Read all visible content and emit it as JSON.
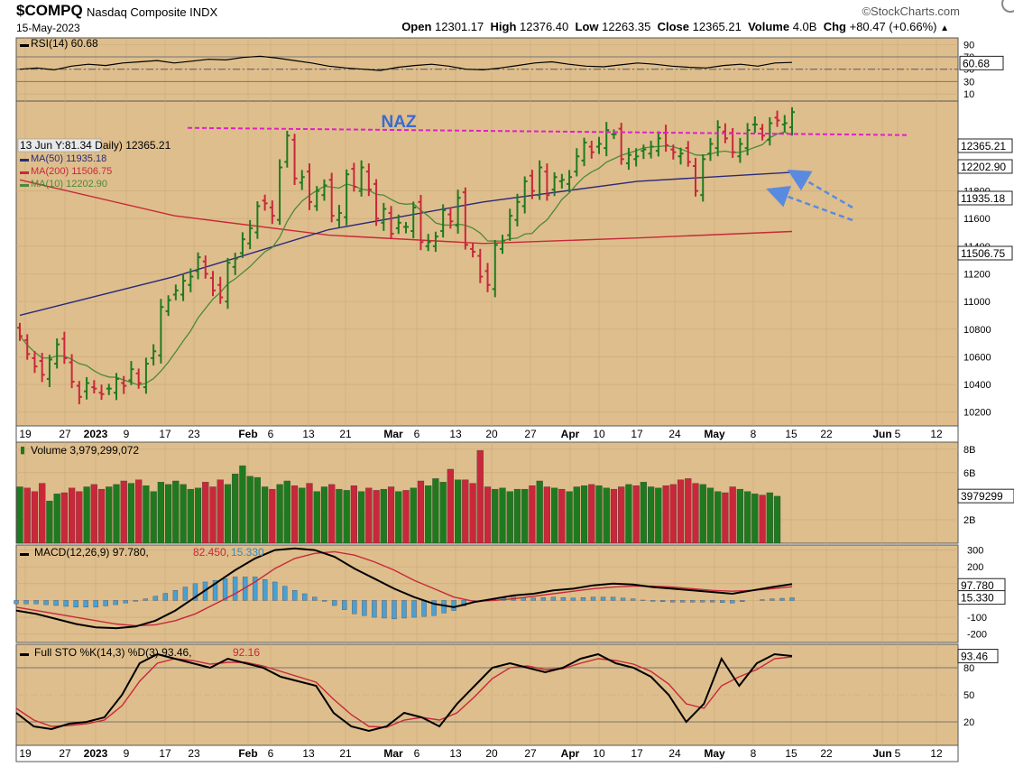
{
  "header": {
    "symbol": "$COMPQ",
    "name": "Nasdaq Composite INDX",
    "date": "15-May-2023",
    "open_label": "Open",
    "open": "12301.17",
    "high_label": "High",
    "high": "12376.40",
    "low_label": "Low",
    "low": "12263.35",
    "close_label": "Close",
    "close": "12365.21",
    "volume_label": "Volume",
    "volume": "4.0B",
    "chg_label": "Chg",
    "chg": "+80.47 (+0.66%)",
    "chg_arrow": "▲",
    "brand": "©StockCharts.com"
  },
  "colors": {
    "panel_bg": "#DEBE8C",
    "up": "#1F7A1F",
    "down": "#C8283A",
    "ma50": "#2A2A7A",
    "ma200": "#C8283A",
    "ma10": "#4A8A3A",
    "resistance": "#E020C8",
    "arrow": "#5A8AE0",
    "macd_hist": "#4AA0D0"
  },
  "rsi_panel": {
    "label": "RSI(14) 60.68",
    "value_tag": "60.68",
    "ticks": [
      "90",
      "70",
      "50",
      "30",
      "10"
    ]
  },
  "price_panel": {
    "annotation": "NAZ",
    "legend_main": "13 Jun Y:81.34 Daily) 12365.21",
    "legend_ma50": "MA(50) 11935.18",
    "legend_ma200": "MA(200) 11506.75",
    "legend_ma10": "MA(10) 12202.90",
    "tag_close": "12365.21",
    "tag_ma10": "12202.90",
    "tag_ma50": "11935.18",
    "tag_ma200": "11506.75",
    "ticks": [
      "11800",
      "11600",
      "11400",
      "11200",
      "11000",
      "10800",
      "10600",
      "10400",
      "10200"
    ]
  },
  "volume_panel": {
    "label": "Volume 3,979,299,072",
    "value_tag": "3979299",
    "ticks": [
      "8B",
      "6B",
      "2B"
    ]
  },
  "macd_panel": {
    "label_a": "MACD(12,26,9) 97.780,",
    "label_b": "82.450,",
    "label_c": "15.330",
    "tag_macd": "97.780",
    "tag_hist": "15.330",
    "ticks": [
      "300",
      "200",
      "100",
      "0",
      "-100",
      "-200"
    ]
  },
  "sto_panel": {
    "label_a": "Full STO %K(14,3) %D(3) 93.46,",
    "label_b": "92.16",
    "value_tag": "93.46",
    "ticks": [
      "80",
      "50",
      "20"
    ]
  },
  "x_axis": {
    "labels": [
      {
        "text": "19",
        "bold": false
      },
      {
        "text": "27",
        "bold": false
      },
      {
        "text": "2023",
        "bold": true
      },
      {
        "text": "9",
        "bold": false
      },
      {
        "text": "17",
        "bold": false
      },
      {
        "text": "23",
        "bold": false
      },
      {
        "text": "Feb",
        "bold": true
      },
      {
        "text": "6",
        "bold": false
      },
      {
        "text": "13",
        "bold": false
      },
      {
        "text": "21",
        "bold": false
      },
      {
        "text": "Mar",
        "bold": true
      },
      {
        "text": "6",
        "bold": false
      },
      {
        "text": "13",
        "bold": false
      },
      {
        "text": "20",
        "bold": false
      },
      {
        "text": "27",
        "bold": false
      },
      {
        "text": "Apr",
        "bold": true
      },
      {
        "text": "10",
        "bold": false
      },
      {
        "text": "17",
        "bold": false
      },
      {
        "text": "24",
        "bold": false
      },
      {
        "text": "May",
        "bold": true
      },
      {
        "text": "8",
        "bold": false
      },
      {
        "text": "15",
        "bold": false
      },
      {
        "text": "22",
        "bold": false
      },
      {
        "text": "Jun",
        "bold": true
      },
      {
        "text": "5",
        "bold": false
      },
      {
        "text": "12",
        "bold": false
      }
    ]
  },
  "chart_data": [
    {
      "type": "ohlc",
      "title": "$COMPQ Nasdaq Composite INDX",
      "ylim": [
        10100,
        12450
      ],
      "resistance_level": 12230,
      "annotations": [
        "NAZ"
      ],
      "close": [
        10750,
        10620,
        10530,
        10470,
        10580,
        10690,
        10590,
        10420,
        10310,
        10410,
        10370,
        10330,
        10370,
        10440,
        10390,
        10510,
        10410,
        10550,
        10640,
        10960,
        11010,
        11080,
        11150,
        11180,
        11320,
        11200,
        11080,
        11030,
        11280,
        11310,
        11450,
        11530,
        11690,
        11710,
        11620,
        11970,
        12200,
        11890,
        11900,
        11720,
        11800,
        11840,
        11620,
        11640,
        11920,
        11830,
        11970,
        11810,
        11600,
        11670,
        11490,
        11570,
        11540,
        11680,
        11430,
        11430,
        11470,
        11660,
        11580,
        11750,
        11410,
        11360,
        11180,
        11120,
        11410,
        11440,
        11620,
        11720,
        11870,
        11800,
        11970,
        11770,
        11900,
        11880,
        11900,
        12050,
        12150,
        12080,
        12140,
        12240,
        12210,
        12030,
        12060,
        12050,
        12100,
        12120,
        12180,
        12130,
        12080,
        12070,
        12010,
        11800,
        12030,
        12140,
        12260,
        12180,
        12080,
        12140,
        12240,
        12280,
        12200,
        12290,
        12310,
        12290,
        12370
      ],
      "series": [
        {
          "name": "MA(50)",
          "last": 11935.18,
          "values": [
            10900,
            11180,
            11520,
            11720,
            11870,
            11935
          ]
        },
        {
          "name": "MA(200)",
          "last": 11506.75,
          "values": [
            11880,
            11620,
            11480,
            11420,
            11460,
            11507
          ]
        },
        {
          "name": "MA(10)",
          "last": 12202.9,
          "values": [
            10850,
            10380,
            11000,
            11950,
            11700,
            11450,
            11900,
            12100,
            12050,
            12203
          ]
        }
      ]
    },
    {
      "type": "line",
      "name": "RSI(14)",
      "ylim": [
        0,
        100
      ],
      "last": 60.68,
      "values": [
        50,
        52,
        49,
        55,
        58,
        56,
        60,
        62,
        64,
        60,
        63,
        66,
        65,
        69,
        71,
        68,
        64,
        60,
        55,
        52,
        50,
        48,
        53,
        56,
        58,
        55,
        50,
        49,
        52,
        56,
        60,
        62,
        58,
        55,
        54,
        57,
        60,
        58,
        55,
        53,
        52,
        56,
        58,
        55,
        60,
        61
      ]
    },
    {
      "type": "bar",
      "name": "Volume",
      "last": 3979299072,
      "values": [
        4.8,
        4.7,
        4.4,
        5.1,
        3.6,
        4.2,
        4.3,
        4.7,
        4.4,
        4.8,
        5.0,
        4.6,
        4.8,
        5.0,
        5.3,
        5.1,
        5.4,
        4.9,
        4.4,
        5.2,
        5.0,
        5.3,
        5.0,
        4.6,
        4.7,
        5.2,
        4.8,
        5.4,
        5.0,
        5.9,
        6.6,
        5.7,
        5.6,
        4.8,
        4.6,
        5.0,
        5.3,
        4.9,
        4.7,
        5.1,
        4.4,
        4.8,
        5.0,
        4.6,
        4.5,
        4.9,
        4.4,
        4.7,
        4.5,
        4.6,
        4.8,
        4.4,
        4.5,
        4.7,
        5.3,
        4.9,
        5.5,
        5.2,
        6.3,
        5.4,
        5.4,
        5.1,
        7.9,
        4.8,
        4.6,
        4.7,
        4.4,
        4.6,
        4.6,
        4.9,
        5.3,
        4.8,
        4.7,
        4.6,
        4.4,
        4.8,
        4.9,
        5.0,
        4.9,
        4.7,
        4.6,
        4.8,
        5.0,
        4.9,
        5.2,
        4.8,
        4.7,
        4.9,
        5.0,
        5.4,
        5.5,
        5.1,
        5.0,
        4.7,
        4.4,
        4.3,
        4.8,
        4.6,
        4.4,
        4.2,
        4.1,
        4.3,
        4.0
      ]
    },
    {
      "type": "line",
      "name": "MACD(12,26,9)",
      "macd": 97.78,
      "signal": 82.45,
      "histogram": 15.33,
      "ylim": [
        -250,
        330
      ],
      "series": [
        {
          "name": "MACD",
          "values": [
            -60,
            -80,
            -110,
            -140,
            -160,
            -165,
            -155,
            -120,
            -60,
            20,
            100,
            180,
            250,
            300,
            310,
            300,
            260,
            190,
            130,
            70,
            20,
            -20,
            -40,
            -10,
            10,
            30,
            40,
            60,
            70,
            90,
            100,
            95,
            80,
            70,
            60,
            50,
            40,
            60,
            80,
            98
          ]
        },
        {
          "name": "Signal",
          "values": [
            -40,
            -60,
            -80,
            -100,
            -120,
            -140,
            -150,
            -145,
            -120,
            -80,
            -20,
            40,
            110,
            190,
            250,
            280,
            290,
            270,
            230,
            180,
            120,
            70,
            20,
            -5,
            0,
            10,
            25,
            40,
            55,
            70,
            80,
            85,
            85,
            80,
            70,
            60,
            55,
            60,
            70,
            82
          ]
        }
      ]
    },
    {
      "type": "line",
      "name": "Full STO %K(14,3) %D(3)",
      "ylim": [
        0,
        100
      ],
      "k_last": 93.46,
      "d_last": 92.16,
      "series": [
        {
          "name": "%K",
          "values": [
            30,
            15,
            12,
            18,
            20,
            25,
            50,
            85,
            95,
            90,
            85,
            80,
            90,
            85,
            80,
            70,
            65,
            60,
            30,
            15,
            10,
            15,
            30,
            25,
            15,
            40,
            60,
            80,
            85,
            80,
            75,
            80,
            90,
            95,
            85,
            80,
            70,
            50,
            20,
            40,
            90,
            60,
            85,
            95,
            93
          ]
        },
        {
          "name": "%D",
          "values": [
            35,
            22,
            15,
            16,
            18,
            22,
            38,
            65,
            85,
            90,
            88,
            84,
            86,
            86,
            82,
            76,
            70,
            64,
            45,
            28,
            15,
            14,
            22,
            25,
            22,
            30,
            48,
            68,
            80,
            82,
            78,
            79,
            85,
            90,
            88,
            84,
            76,
            62,
            40,
            35,
            60,
            70,
            78,
            90,
            92
          ]
        }
      ]
    }
  ]
}
